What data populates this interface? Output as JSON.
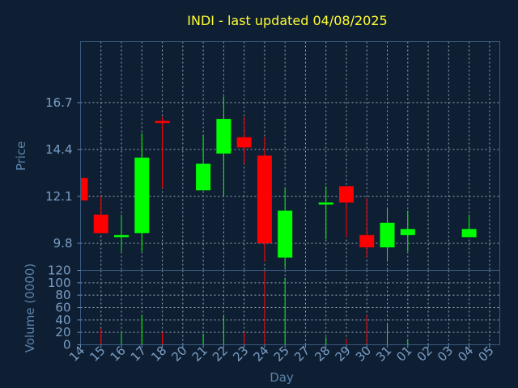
{
  "chart_data": {
    "type": "candlestick",
    "title": "INDI - last updated 04/08/2025",
    "xlabel": "Day",
    "ylabel": "Price",
    "volume_ylabel": "Volume (0000)",
    "x_tick_labels": [
      "14",
      "15",
      "16",
      "17",
      "18",
      "20",
      "21",
      "22",
      "23",
      "24",
      "25",
      "27",
      "28",
      "29",
      "30",
      "31",
      "01",
      "02",
      "03",
      "04",
      "05"
    ],
    "y_ticks": [
      9.8,
      12.1,
      14.4,
      16.7
    ],
    "y_tick_labels": [
      "9.8",
      "12.1",
      "14.4",
      "16.7"
    ],
    "ylim": [
      8.47,
      19.69
    ],
    "volume_ticks": [
      0,
      20,
      40,
      60,
      80,
      100,
      120
    ],
    "volume_tick_labels": [
      "0",
      "20",
      "40",
      "60",
      "80",
      "100",
      "120"
    ],
    "volume_ylim": [
      0,
      120
    ],
    "grid": true,
    "colors": {
      "background": "#0f1f33",
      "up": "#00ff00",
      "down": "#ff0000",
      "title": "#ffff33",
      "axis_text": "#7a9ec4",
      "grid": "#9aaabb"
    },
    "candles": [
      {
        "day": "14",
        "open": 13.0,
        "high": 13.0,
        "low": 11.9,
        "close": 11.9,
        "volume": 0
      },
      {
        "day": "15",
        "open": 11.2,
        "high": 12.1,
        "low": 10.3,
        "close": 10.3,
        "volume": 26
      },
      {
        "day": "16",
        "open": 10.1,
        "high": 11.2,
        "low": 9.4,
        "close": 10.2,
        "volume": 20
      },
      {
        "day": "17",
        "open": 10.3,
        "high": 15.2,
        "low": 9.4,
        "close": 14.0,
        "volume": 48
      },
      {
        "day": "18",
        "open": 15.8,
        "high": 16.0,
        "low": 12.5,
        "close": 15.7,
        "volume": 20
      },
      {
        "day": "21",
        "open": 12.4,
        "high": 15.1,
        "low": 12.4,
        "close": 13.7,
        "volume": 18
      },
      {
        "day": "22",
        "open": 14.2,
        "high": 17.0,
        "low": 12.1,
        "close": 15.9,
        "volume": 48
      },
      {
        "day": "23",
        "open": 15.0,
        "high": 16.0,
        "low": 13.7,
        "close": 14.5,
        "volume": 20
      },
      {
        "day": "24",
        "open": 14.1,
        "high": 15.0,
        "low": 8.9,
        "close": 9.8,
        "volume": 120
      },
      {
        "day": "25",
        "open": 9.1,
        "high": 12.5,
        "low": 8.6,
        "close": 11.4,
        "volume": 108
      },
      {
        "day": "28",
        "open": 11.7,
        "high": 12.6,
        "low": 10.0,
        "close": 11.8,
        "volume": 12
      },
      {
        "day": "29",
        "open": 12.6,
        "high": 12.6,
        "low": 10.1,
        "close": 11.8,
        "volume": 10
      },
      {
        "day": "30",
        "open": 10.2,
        "high": 12.0,
        "low": 9.1,
        "close": 9.6,
        "volume": 48
      },
      {
        "day": "31",
        "open": 9.6,
        "high": 11.5,
        "low": 8.9,
        "close": 10.8,
        "volume": 34
      },
      {
        "day": "01",
        "open": 10.2,
        "high": 11.4,
        "low": 9.4,
        "close": 10.5,
        "volume": 8
      },
      {
        "day": "04",
        "open": 10.1,
        "high": 11.2,
        "low": 10.1,
        "close": 10.5,
        "volume": 0
      }
    ]
  }
}
